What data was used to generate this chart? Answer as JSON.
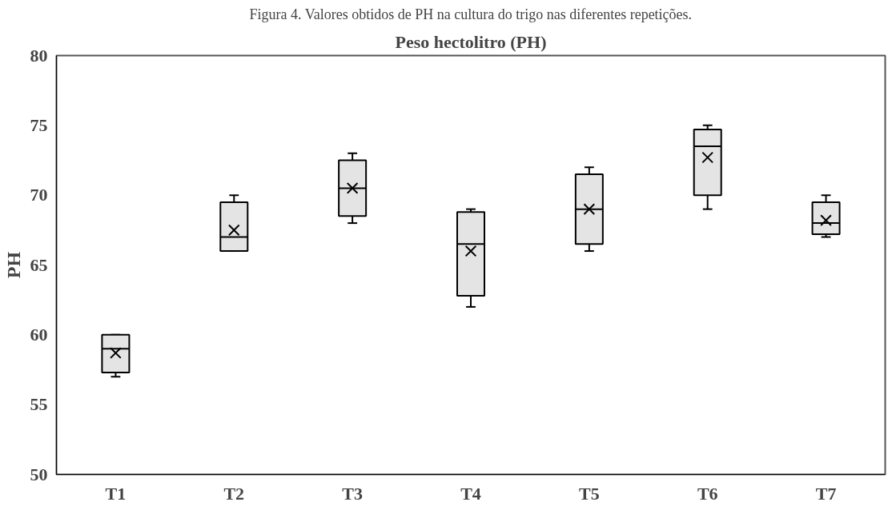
{
  "chart_data": {
    "type": "box",
    "title": "Peso hectolitro (PH)",
    "ylabel": "PH",
    "annotations": [
      "Figura 4. Valores obtidos de PH na cultura do trigo nas diferentes repetições."
    ],
    "categories": [
      "T1",
      "T2",
      "T3",
      "T4",
      "T5",
      "T6",
      "T7"
    ],
    "boxes": [
      {
        "low": 57,
        "q1": 57.3,
        "median": 59,
        "q3": 60,
        "high": 60,
        "mean": 58.7
      },
      {
        "low": 66,
        "q1": 66,
        "median": 67,
        "q3": 69.5,
        "high": 70,
        "mean": 67.5
      },
      {
        "low": 68,
        "q1": 68.5,
        "median": 70.5,
        "q3": 72.5,
        "high": 73,
        "mean": 70.5
      },
      {
        "low": 62,
        "q1": 62.8,
        "median": 66.5,
        "q3": 68.8,
        "high": 69,
        "mean": 66
      },
      {
        "low": 66,
        "q1": 66.5,
        "median": 69,
        "q3": 71.5,
        "high": 72,
        "mean": 69
      },
      {
        "low": 69,
        "q1": 70,
        "median": 73.5,
        "q3": 74.7,
        "high": 75,
        "mean": 72.7
      },
      {
        "low": 67,
        "q1": 67.2,
        "median": 68,
        "q3": 69.5,
        "high": 70,
        "mean": 68.2
      }
    ],
    "color": "#e4e4e4",
    "ylim": [
      50,
      80
    ],
    "yticks": [
      50,
      55,
      60,
      65,
      70,
      75,
      80
    ],
    "grid": false,
    "marker": "cross"
  }
}
